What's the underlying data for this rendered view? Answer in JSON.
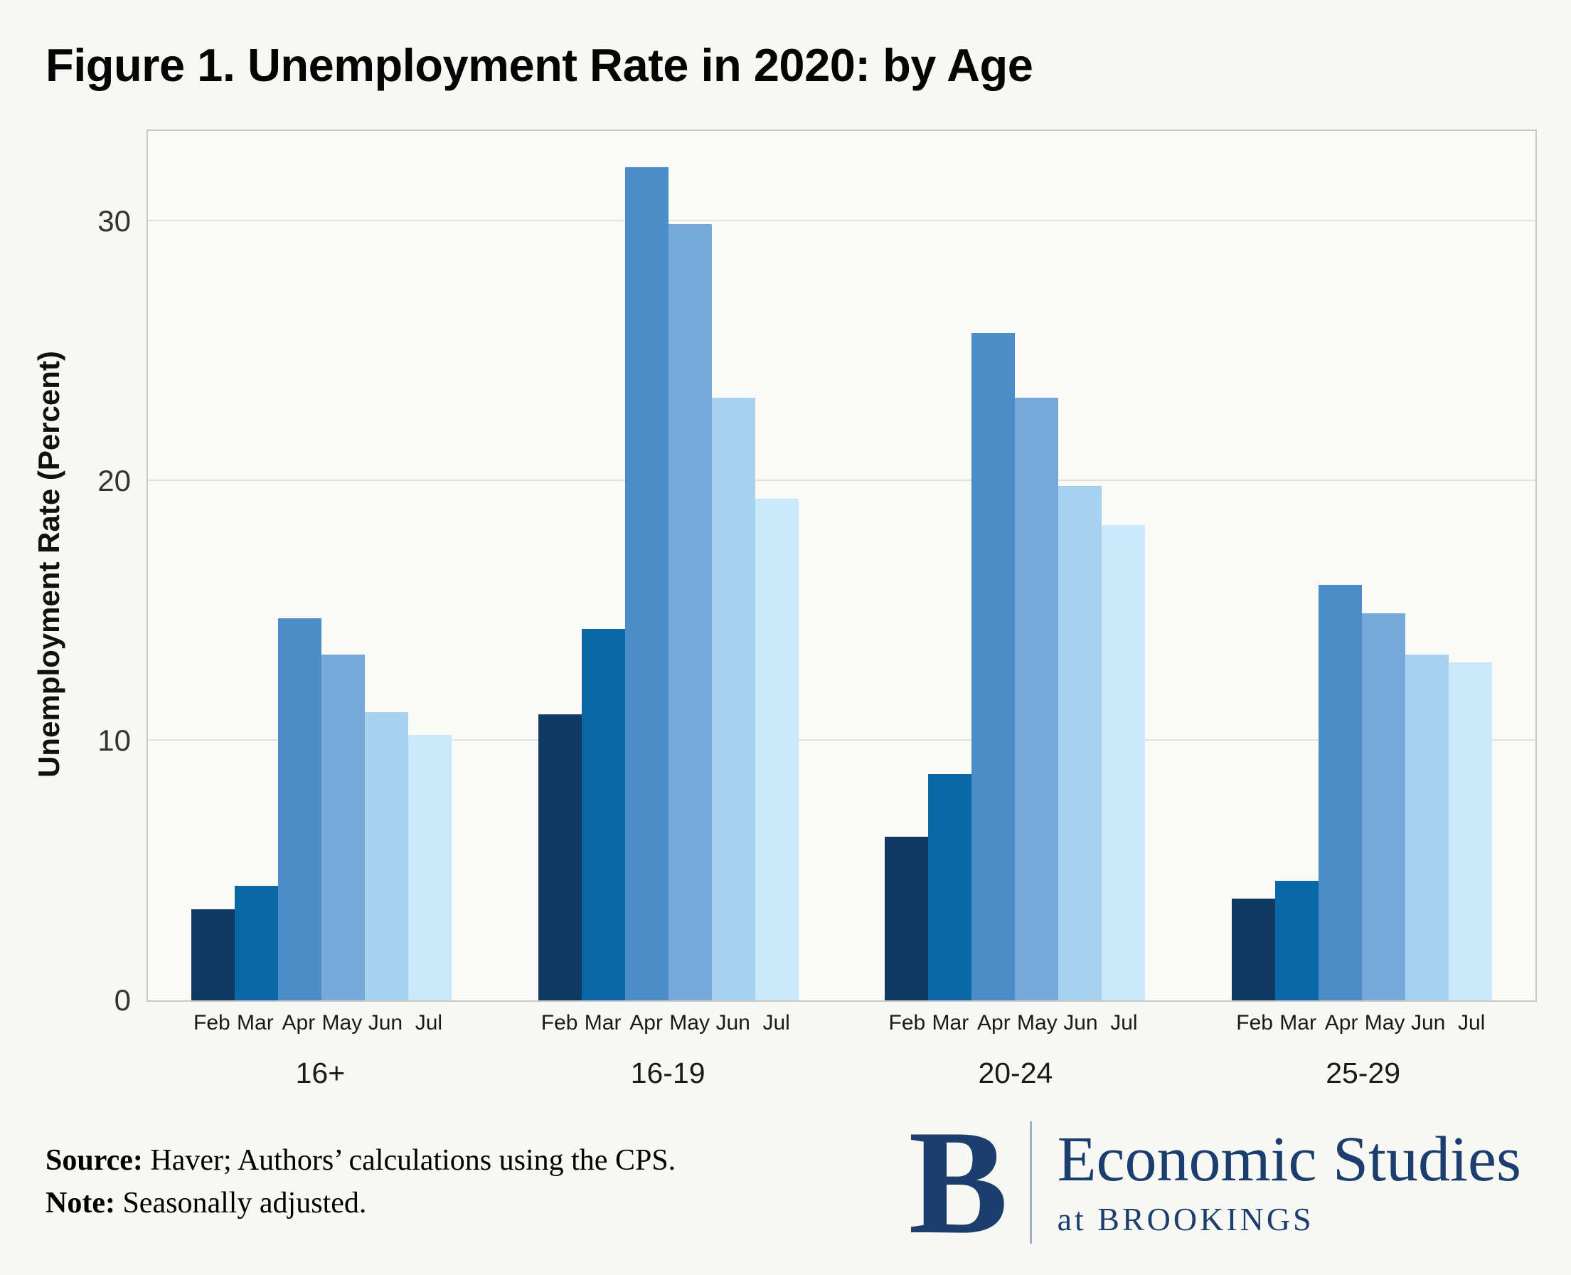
{
  "title": "Figure 1. Unemployment Rate in 2020: by Age",
  "chart_data": {
    "type": "bar",
    "title": "Figure 1. Unemployment Rate in 2020: by Age",
    "xlabel": "",
    "ylabel": "Unemployment Rate (Percent)",
    "ylim": [
      0,
      33.5
    ],
    "yticks": [
      0,
      10,
      20,
      30
    ],
    "gridlines": [
      10,
      20,
      30
    ],
    "legend_position": "none",
    "grid": "horizontal",
    "categories": [
      "Feb",
      "Mar",
      "Apr",
      "May",
      "Jun",
      "Jul"
    ],
    "bar_colors": [
      "#0e3a63",
      "#0968a5",
      "#4c8cc9",
      "#76a9da",
      "#a7d2ef",
      "#c9e9fb"
    ],
    "groups": [
      {
        "label": "16+",
        "values": [
          3.5,
          4.4,
          14.7,
          13.3,
          11.1,
          10.2
        ]
      },
      {
        "label": "16-19",
        "values": [
          11.0,
          14.3,
          32.1,
          29.9,
          23.2,
          19.3
        ]
      },
      {
        "label": "20-24",
        "values": [
          6.3,
          8.7,
          25.7,
          23.2,
          19.8,
          18.3
        ]
      },
      {
        "label": "25-29",
        "values": [
          3.9,
          4.6,
          16.0,
          14.9,
          13.3,
          13.0
        ]
      }
    ]
  },
  "footer": {
    "source_label": "Source:",
    "source_text": "Haver; Authors’ calculations using the CPS.",
    "note_label": "Note:",
    "note_text": "Seasonally adjusted."
  },
  "logo": {
    "mark": "B",
    "title": "Economic Studies",
    "subtitle": "at BROOKINGS",
    "brand_color": "#1c3e6e"
  }
}
